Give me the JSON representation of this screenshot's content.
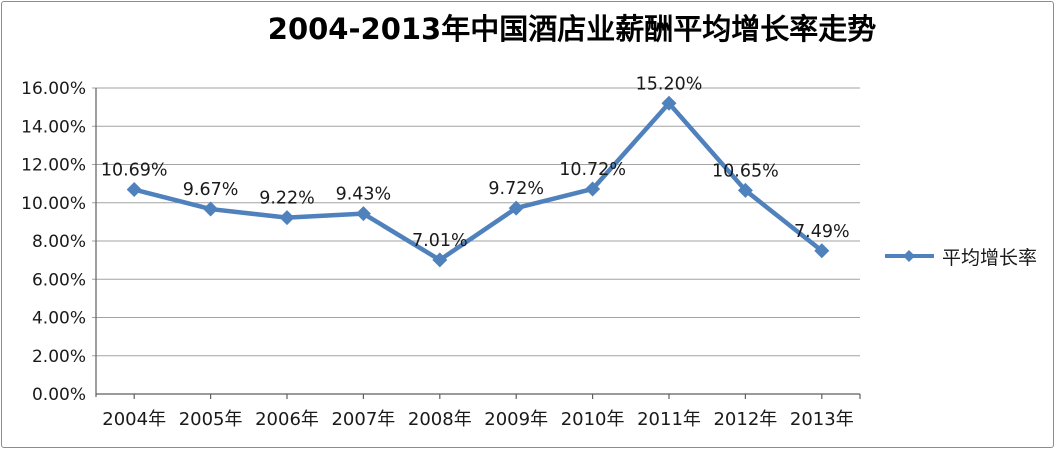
{
  "chart_data": {
    "type": "line",
    "title": "2004-2013年中国酒店业薪酬平均增长率走势",
    "categories": [
      "2004年",
      "2005年",
      "2006年",
      "2007年",
      "2008年",
      "2009年",
      "2010年",
      "2011年",
      "2012年",
      "2013年"
    ],
    "series": [
      {
        "name": "平均增长率",
        "values": [
          10.69,
          9.67,
          9.22,
          9.43,
          7.01,
          9.72,
          10.72,
          15.2,
          10.65,
          7.49
        ],
        "data_labels": [
          "10.69%",
          "9.67%",
          "9.22%",
          "9.43%",
          "7.01%",
          "9.72%",
          "10.72%",
          "15.20%",
          "10.65%",
          "7.49%"
        ]
      }
    ],
    "ylim": [
      0,
      16
    ],
    "ytick_step": 2,
    "ytick_labels": [
      "0.00%",
      "2.00%",
      "4.00%",
      "6.00%",
      "8.00%",
      "10.00%",
      "12.00%",
      "14.00%",
      "16.00%"
    ],
    "grid": true,
    "legend_position": "right",
    "marker_shape": "diamond",
    "colors": {
      "series": "#4F81BD",
      "gridline": "#A3A3A3",
      "axis": "#5f5f5f",
      "label_text": "#1a1a1a",
      "border": "#8c8c8c",
      "background": "#FFFFFF"
    }
  }
}
